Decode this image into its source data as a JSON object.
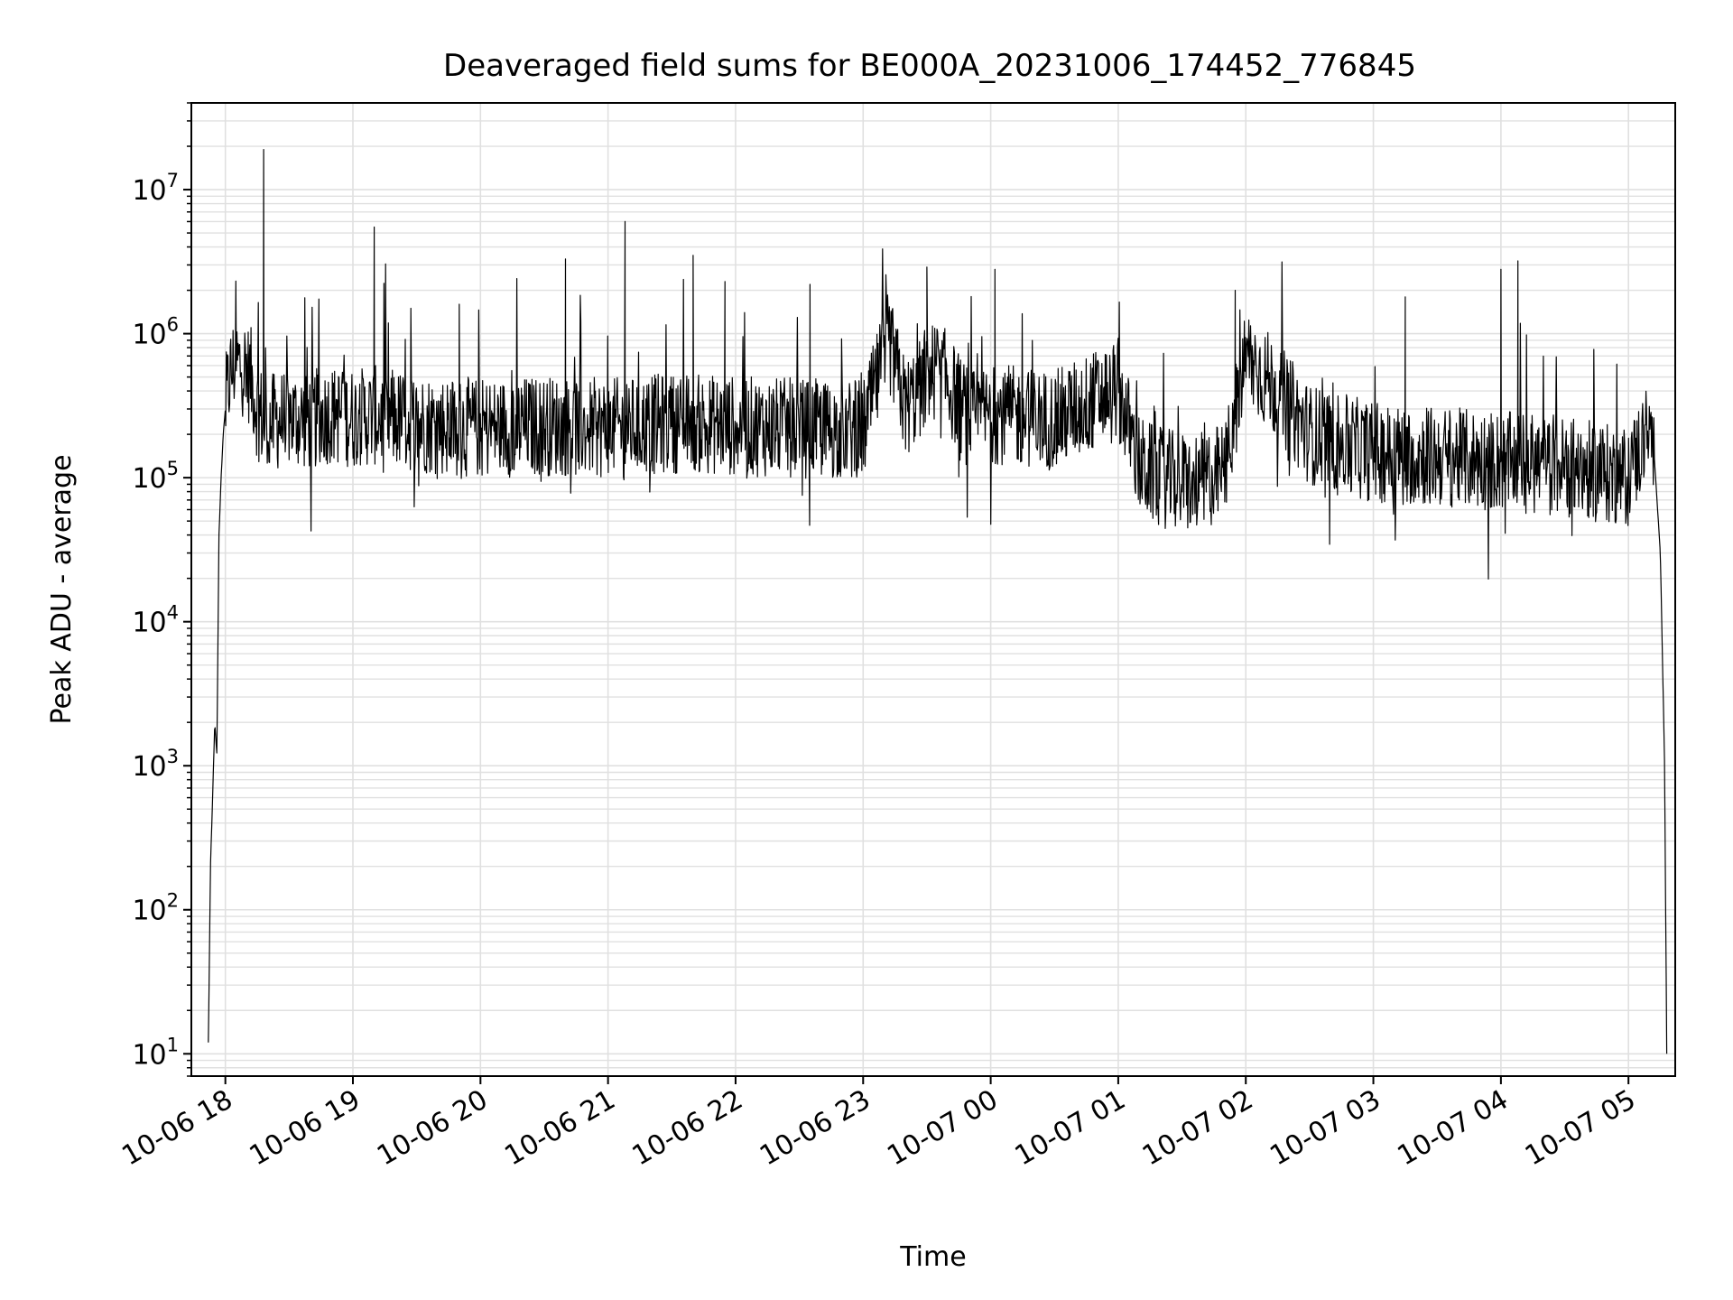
{
  "chart_data": {
    "type": "line",
    "title": "Deaveraged field sums for BE000A_20231006_174452_776845",
    "xlabel": "Time",
    "ylabel": "Peak ADU - average",
    "yscale": "log",
    "grid": true,
    "grid_minor": true,
    "xlim": [
      "2023-10-06 17:44",
      "2023-10-07 05:22"
    ],
    "ylim": [
      7,
      40000000
    ],
    "x_ticks": [
      {
        "value": "2023-10-06 18:00",
        "label": "10-06 18"
      },
      {
        "value": "2023-10-06 19:00",
        "label": "10-06 19"
      },
      {
        "value": "2023-10-06 20:00",
        "label": "10-06 20"
      },
      {
        "value": "2023-10-06 21:00",
        "label": "10-06 21"
      },
      {
        "value": "2023-10-06 22:00",
        "label": "10-06 22"
      },
      {
        "value": "2023-10-06 23:00",
        "label": "10-06 23"
      },
      {
        "value": "2023-10-07 00:00",
        "label": "10-07 00"
      },
      {
        "value": "2023-10-07 01:00",
        "label": "10-07 01"
      },
      {
        "value": "2023-10-07 02:00",
        "label": "10-07 02"
      },
      {
        "value": "2023-10-07 03:00",
        "label": "10-07 03"
      },
      {
        "value": "2023-10-07 04:00",
        "label": "10-07 04"
      },
      {
        "value": "2023-10-07 05:00",
        "label": "10-07 05"
      }
    ],
    "y_ticks": [
      {
        "value": 10,
        "base": "10",
        "exp": "1"
      },
      {
        "value": 100,
        "base": "10",
        "exp": "2"
      },
      {
        "value": 1000,
        "base": "10",
        "exp": "3"
      },
      {
        "value": 10000,
        "base": "10",
        "exp": "4"
      },
      {
        "value": 100000,
        "base": "10",
        "exp": "5"
      },
      {
        "value": 1000000,
        "base": "10",
        "exp": "6"
      },
      {
        "value": 10000000,
        "base": "10",
        "exp": "7"
      }
    ],
    "series": [
      {
        "color": "#000000",
        "x": [
          "2023-10-06 17:52",
          "2023-10-06 17:53",
          "2023-10-06 17:54",
          "2023-10-06 17:55",
          "2023-10-06 17:56",
          "2023-10-06 17:57",
          "2023-10-06 17:58",
          "2023-10-06 17:59",
          "2023-10-06 18:00",
          "2023-10-06 18:02",
          "2023-10-06 18:04",
          "2023-10-06 18:06",
          "2023-10-06 18:09",
          "2023-10-06 18:12",
          "2023-10-06 18:15",
          "2023-10-06 18:18",
          "2023-10-06 18:19",
          "2023-10-06 18:20",
          "2023-10-06 18:22",
          "2023-10-06 18:25",
          "2023-10-06 18:30",
          "2023-10-06 18:40",
          "2023-10-06 18:50",
          "2023-10-06 19:00",
          "2023-10-06 19:10",
          "2023-10-06 19:30",
          "2023-10-06 20:00",
          "2023-10-06 20:30",
          "2023-10-06 21:00",
          "2023-10-06 21:30",
          "2023-10-06 22:00",
          "2023-10-06 22:30",
          "2023-10-06 23:00",
          "2023-10-06 23:12",
          "2023-10-06 23:20",
          "2023-10-06 23:35",
          "2023-10-06 23:50",
          "2023-10-07 00:00",
          "2023-10-07 00:30",
          "2023-10-07 01:00",
          "2023-10-07 01:10",
          "2023-10-07 01:20",
          "2023-10-07 01:35",
          "2023-10-07 01:50",
          "2023-10-07 02:00",
          "2023-10-07 02:15",
          "2023-10-07 02:30",
          "2023-10-07 03:00",
          "2023-10-07 03:30",
          "2023-10-07 04:00",
          "2023-10-07 04:30",
          "2023-10-07 05:00",
          "2023-10-07 05:08",
          "2023-10-07 05:12",
          "2023-10-07 05:15",
          "2023-10-07 05:17",
          "2023-10-07 05:18"
        ],
        "y": [
          12,
          200,
          600,
          2000,
          1200,
          40000,
          100000,
          200000,
          300000,
          500000,
          600000,
          620000,
          580000,
          500000,
          300000,
          250000,
          220000,
          230000,
          240000,
          250000,
          260000,
          250000,
          280000,
          260000,
          270000,
          240000,
          220000,
          230000,
          220000,
          240000,
          230000,
          220000,
          210000,
          900000,
          300000,
          600000,
          250000,
          280000,
          250000,
          420000,
          120000,
          100000,
          90000,
          110000,
          700000,
          400000,
          200000,
          150000,
          140000,
          130000,
          120000,
          100000,
          200000,
          150000,
          30000,
          1000,
          10
        ],
        "spikes": [
          {
            "x": "2023-10-06 18:18",
            "y": 19000000
          },
          {
            "x": "2023-10-06 19:10",
            "y": 5500000
          },
          {
            "x": "2023-10-06 19:50",
            "y": 1600000
          },
          {
            "x": "2023-10-06 20:40",
            "y": 3300000
          },
          {
            "x": "2023-10-06 21:08",
            "y": 6000000
          },
          {
            "x": "2023-10-06 21:40",
            "y": 3500000
          },
          {
            "x": "2023-10-06 21:55",
            "y": 2300000
          },
          {
            "x": "2023-10-06 22:35",
            "y": 2200000
          },
          {
            "x": "2023-10-06 23:30",
            "y": 2900000
          },
          {
            "x": "2023-10-07 00:02",
            "y": 2800000
          },
          {
            "x": "2023-10-07 01:55",
            "y": 2000000
          },
          {
            "x": "2023-10-07 03:15",
            "y": 1800000
          },
          {
            "x": "2023-10-07 04:00",
            "y": 2800000
          },
          {
            "x": "2023-10-07 04:08",
            "y": 3200000
          }
        ]
      }
    ]
  }
}
